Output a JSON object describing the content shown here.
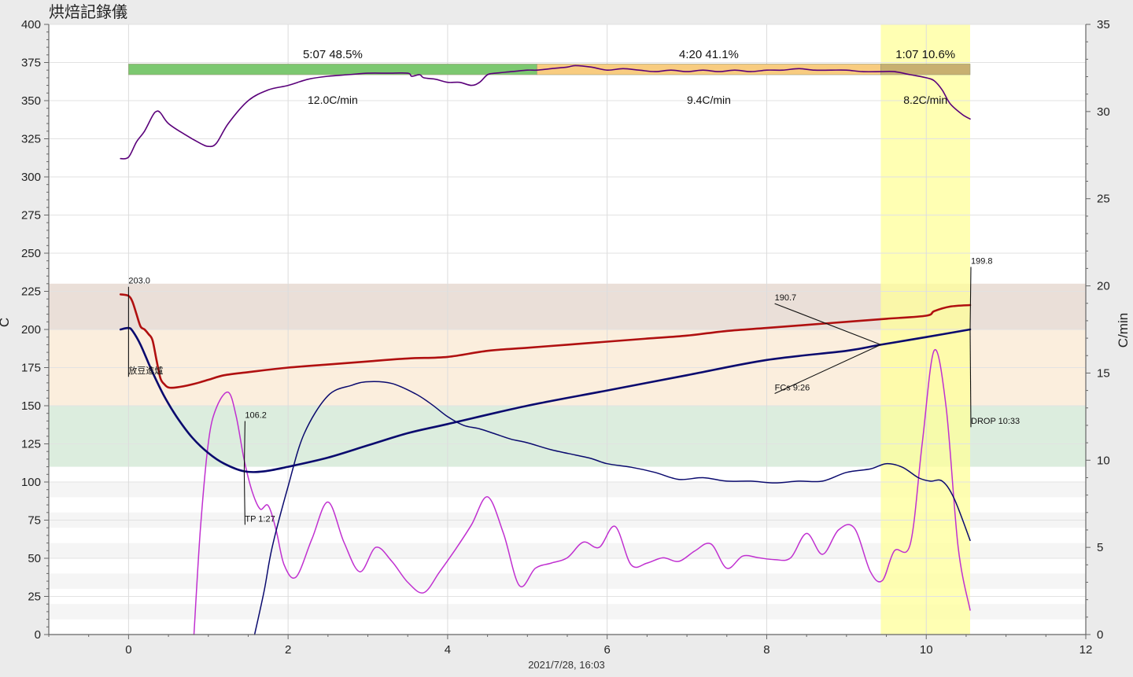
{
  "window_title": "烘焙記錄儀",
  "chart_data": {
    "type": "line",
    "title": "",
    "xlabel": "2021/7/28, 16:03",
    "ylabel": "C",
    "y2label": "C/min",
    "xlim": [
      -1,
      12
    ],
    "ylim": [
      0,
      400
    ],
    "y2lim": [
      0,
      35
    ],
    "x_ticks": [
      "0",
      "2",
      "4",
      "6",
      "8",
      "10",
      "12"
    ],
    "y_ticks": [
      "0",
      "25",
      "50",
      "75",
      "100",
      "125",
      "150",
      "175",
      "200",
      "225",
      "250",
      "275",
      "300",
      "325",
      "350",
      "375",
      "400"
    ],
    "y2_ticks": [
      "0",
      "5",
      "10",
      "15",
      "20",
      "25",
      "30",
      "35"
    ],
    "grid": true,
    "colors": {
      "bean_temp": "#0a0a6e",
      "env_temp": "#b01010",
      "bean_ror": "#0a0a6e",
      "env_ror": "#c030d0",
      "ror_summary": "#5a007a",
      "phase_drying": "#7cc870",
      "phase_maillard": "#f8cc80",
      "phase_development": "#c8b070",
      "dev_highlight": "#ffff99",
      "band_upper": "#eadfd8",
      "band_orange": "#fbeedd",
      "band_green": "#dcedde",
      "band_stripe": "#f5f5f5"
    },
    "background_bands": [
      {
        "from": 110,
        "to": 150,
        "color": "#dcedde"
      },
      {
        "from": 150,
        "to": 200,
        "color": "#fbeedd"
      },
      {
        "from": 200,
        "to": 230,
        "color": "#eadfd8"
      }
    ],
    "highlight_region": {
      "x_from": 9.43,
      "x_to": 10.55
    },
    "phases": [
      {
        "x_from": 0,
        "x_to": 5.12,
        "time": "5:07",
        "percent": "48.5%",
        "rate": "12.0C/min",
        "color": "#7cc870"
      },
      {
        "x_from": 5.12,
        "x_to": 9.43,
        "time": "4:20",
        "percent": "41.1%",
        "rate": "9.4C/min",
        "color": "#f8cc80"
      },
      {
        "x_from": 9.43,
        "x_to": 10.55,
        "time": "1:07",
        "percent": "10.6%",
        "rate": "8.2C/min",
        "color": "#c8b070"
      }
    ],
    "series": [
      {
        "key": "bean_temp",
        "axis": "left",
        "width": 2.6,
        "x": [
          -0.1,
          0.0,
          0.05,
          0.15,
          0.3,
          0.45,
          0.6,
          0.8,
          1.0,
          1.2,
          1.45,
          1.7,
          2.0,
          2.5,
          3.0,
          3.5,
          4.0,
          5.0,
          6.0,
          7.0,
          8.0,
          9.0,
          9.43,
          10.0,
          10.55
        ],
        "values": [
          200,
          201,
          199,
          190,
          172,
          156,
          143,
          129,
          119,
          112,
          107,
          107,
          110,
          116,
          124,
          132,
          138,
          150,
          160,
          170,
          180,
          186,
          190,
          195,
          200
        ]
      },
      {
        "key": "env_temp",
        "axis": "left",
        "width": 2.6,
        "x": [
          -0.1,
          0.0,
          0.05,
          0.1,
          0.15,
          0.2,
          0.25,
          0.3,
          0.35,
          0.4,
          0.45,
          0.5,
          0.6,
          0.8,
          1.0,
          1.2,
          1.5,
          2.0,
          2.5,
          3.0,
          3.5,
          4.0,
          4.5,
          5.0,
          5.5,
          6.0,
          6.5,
          7.0,
          7.5,
          8.0,
          8.5,
          9.0,
          9.5,
          10.0,
          10.1,
          10.3,
          10.55
        ],
        "values": [
          223,
          222,
          218,
          210,
          202,
          200,
          197,
          193,
          180,
          168,
          164,
          162,
          162,
          164,
          167,
          170,
          172,
          175,
          177,
          179,
          181,
          182,
          186,
          188,
          190,
          192,
          194,
          196,
          199,
          201,
          203,
          205,
          207,
          209,
          212,
          215,
          216
        ]
      },
      {
        "key": "bean_ror",
        "axis": "right",
        "width": 1.5,
        "x": [
          1.58,
          1.7,
          1.8,
          2.0,
          2.2,
          2.5,
          2.8,
          3.0,
          3.3,
          3.6,
          3.8,
          4.0,
          4.2,
          4.4,
          4.6,
          4.8,
          5.0,
          5.3,
          5.6,
          5.8,
          6.0,
          6.3,
          6.6,
          6.9,
          7.2,
          7.5,
          7.8,
          8.1,
          8.4,
          8.7,
          9.0,
          9.3,
          9.5,
          9.7,
          9.9,
          10.05,
          10.2,
          10.35,
          10.55
        ],
        "values": [
          0,
          2.5,
          5,
          8.5,
          11.5,
          13.7,
          14.3,
          14.5,
          14.4,
          13.8,
          13.2,
          12.5,
          12.0,
          11.8,
          11.5,
          11.2,
          11.0,
          10.6,
          10.3,
          10.1,
          9.8,
          9.6,
          9.3,
          8.9,
          9.0,
          8.8,
          8.8,
          8.7,
          8.8,
          8.8,
          9.3,
          9.5,
          9.8,
          9.6,
          9.0,
          8.8,
          8.8,
          7.8,
          5.4
        ]
      },
      {
        "key": "env_ror",
        "axis": "right",
        "width": 1.5,
        "x": [
          0.82,
          0.9,
          1.0,
          1.1,
          1.25,
          1.35,
          1.45,
          1.55,
          1.65,
          1.75,
          1.85,
          1.95,
          2.1,
          2.3,
          2.5,
          2.7,
          2.9,
          3.1,
          3.3,
          3.5,
          3.7,
          3.9,
          4.1,
          4.3,
          4.5,
          4.7,
          4.9,
          5.1,
          5.3,
          5.5,
          5.7,
          5.9,
          6.1,
          6.3,
          6.5,
          6.7,
          6.9,
          7.1,
          7.3,
          7.5,
          7.7,
          7.9,
          8.1,
          8.3,
          8.5,
          8.7,
          8.9,
          9.1,
          9.3,
          9.45,
          9.6,
          9.8,
          9.95,
          10.1,
          10.25,
          10.4,
          10.55
        ],
        "values": [
          0,
          6,
          11,
          13,
          13.9,
          12.5,
          10,
          8.2,
          7.2,
          7.4,
          6.0,
          4.0,
          3.3,
          5.5,
          7.6,
          5.3,
          3.6,
          5.0,
          4.2,
          3.0,
          2.4,
          3.6,
          4.9,
          6.3,
          7.9,
          5.8,
          2.8,
          3.8,
          4.1,
          4.4,
          5.3,
          5.0,
          6.2,
          4.0,
          4.1,
          4.4,
          4.2,
          4.8,
          5.2,
          3.8,
          4.5,
          4.4,
          4.3,
          4.4,
          5.8,
          4.6,
          6.0,
          6.1,
          3.6,
          3.1,
          4.8,
          5.2,
          11.0,
          16.3,
          13.0,
          5.0,
          1.4
        ]
      },
      {
        "key": "ror_summary",
        "axis": "left",
        "width": 1.6,
        "x": [
          -0.1,
          0.0,
          0.1,
          0.2,
          0.3,
          0.35,
          0.4,
          0.5,
          0.7,
          0.9,
          1.0,
          1.1,
          1.25,
          1.5,
          1.75,
          2.0,
          2.25,
          2.5,
          2.75,
          3.0,
          3.25,
          3.5,
          3.55,
          3.65,
          3.7,
          3.85,
          4.0,
          4.15,
          4.3,
          4.4,
          4.5,
          4.6,
          4.8,
          5.0,
          5.12,
          5.3,
          5.5,
          5.6,
          5.8,
          6.0,
          6.2,
          6.4,
          6.6,
          6.8,
          7.0,
          7.2,
          7.4,
          7.6,
          7.8,
          8.0,
          8.2,
          8.4,
          8.6,
          8.8,
          9.0,
          9.2,
          9.43,
          9.6,
          9.8,
          10.0,
          10.1,
          10.2,
          10.3,
          10.45,
          10.55
        ],
        "values": [
          312,
          313,
          323,
          330,
          340,
          343,
          342,
          335,
          328,
          322,
          320,
          322,
          335,
          350,
          357,
          360,
          364,
          366,
          367,
          368,
          368,
          368,
          366,
          367,
          365,
          364,
          362,
          362,
          360,
          362,
          367,
          368,
          369,
          370,
          370,
          371,
          372,
          373,
          372,
          370,
          371,
          370,
          369,
          370,
          369,
          370,
          369,
          370,
          369,
          370,
          370,
          371,
          370,
          370,
          370,
          369,
          369,
          369,
          367,
          365,
          363,
          357,
          348,
          341,
          338
        ]
      }
    ],
    "annotations": [
      {
        "text": "203.0",
        "label_x": 0.0,
        "label_y": 229,
        "point_x": 0.0,
        "point_y": 200
      },
      {
        "text": "放豆進爐",
        "label_x": 0.0,
        "label_y": 170,
        "point_x": 0.0,
        "point_y": 200
      },
      {
        "text": "106.2",
        "label_x": 1.46,
        "label_y": 141,
        "point_x": 1.45,
        "point_y": 107
      },
      {
        "text": "TP 1:27",
        "label_x": 1.46,
        "label_y": 73,
        "point_x": 1.45,
        "point_y": 107
      },
      {
        "text": "190.7",
        "label_x": 8.1,
        "label_y": 218,
        "point_x": 9.43,
        "point_y": 190
      },
      {
        "text": "FCs 9:26",
        "label_x": 8.1,
        "label_y": 159,
        "point_x": 9.43,
        "point_y": 190
      },
      {
        "text": "199.8",
        "label_x": 10.56,
        "label_y": 242,
        "point_x": 10.55,
        "point_y": 200
      },
      {
        "text": "DROP 10:33",
        "label_x": 10.56,
        "label_y": 137,
        "point_x": 10.55,
        "point_y": 200
      }
    ]
  }
}
